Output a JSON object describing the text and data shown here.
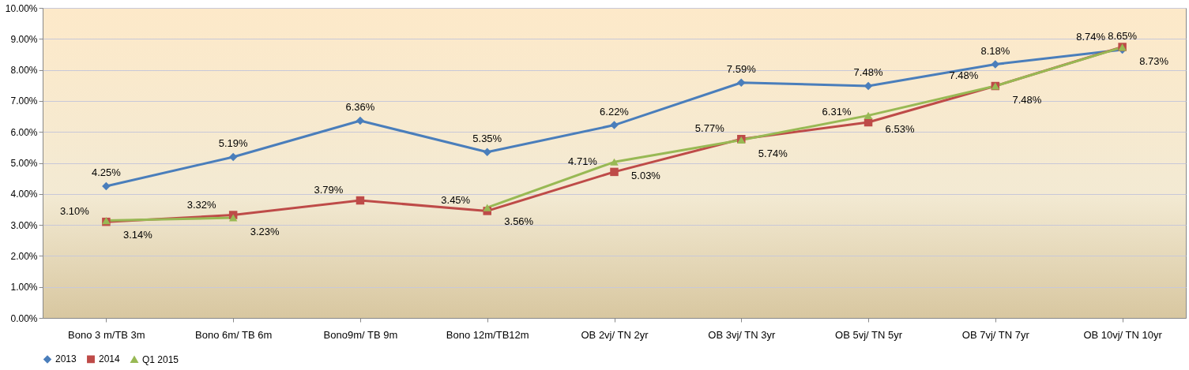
{
  "chart_data": {
    "type": "line",
    "categories": [
      "Bono 3 m/TB 3m",
      "Bono 6m/ TB 6m",
      "Bono9m/ TB 9m",
      "Bono 12m/TB12m",
      "OB 2vj/ TN 2yr",
      "OB 3vj/ TN 3yr",
      "OB 5vj/ TN 5yr",
      "OB 7vj/ TN 7yr",
      "OB 10vj/ TN 10yr"
    ],
    "series": [
      {
        "name": "2013",
        "color": "#4a7ebb",
        "marker": "diamond",
        "values": [
          4.25,
          5.19,
          6.36,
          5.35,
          6.22,
          7.59,
          7.48,
          8.18,
          8.65
        ],
        "value_labels": [
          "4.25%",
          "5.19%",
          "6.36%",
          "5.35%",
          "6.22%",
          "7.59%",
          "7.48%",
          "8.18%",
          "8.65%"
        ]
      },
      {
        "name": "2014",
        "color": "#be4b48",
        "marker": "square",
        "values": [
          3.1,
          3.32,
          3.79,
          3.45,
          4.71,
          5.77,
          6.31,
          7.48,
          8.74
        ],
        "value_labels": [
          "3.10%",
          "3.32%",
          "3.79%",
          "3.45%",
          "4.71%",
          "5.77%",
          "6.31%",
          "7.48%",
          "8.74%"
        ]
      },
      {
        "name": "Q1 2015",
        "color": "#98b954",
        "marker": "triangle",
        "values": [
          3.14,
          3.23,
          null,
          3.56,
          5.03,
          5.74,
          6.53,
          7.48,
          8.73
        ],
        "value_labels": [
          "3.14%",
          "3.23%",
          null,
          "3.56%",
          "5.03%",
          "5.74%",
          "6.53%",
          "7.48%",
          "8.73%"
        ]
      }
    ],
    "ylim": [
      0,
      10
    ],
    "yticks": [
      {
        "value": 0,
        "label": "0.00%"
      },
      {
        "value": 1,
        "label": "1.00%"
      },
      {
        "value": 2,
        "label": "2.00%"
      },
      {
        "value": 3,
        "label": "3.00%"
      },
      {
        "value": 4,
        "label": "4.00%"
      },
      {
        "value": 5,
        "label": "5.00%"
      },
      {
        "value": 6,
        "label": "6.00%"
      },
      {
        "value": 7,
        "label": "7.00%"
      },
      {
        "value": 8,
        "label": "8.00%"
      },
      {
        "value": 9,
        "label": "9.00%"
      },
      {
        "value": 10,
        "label": "10.00%"
      }
    ],
    "grid": "y",
    "legend": "bottom",
    "line_style": "solid"
  }
}
